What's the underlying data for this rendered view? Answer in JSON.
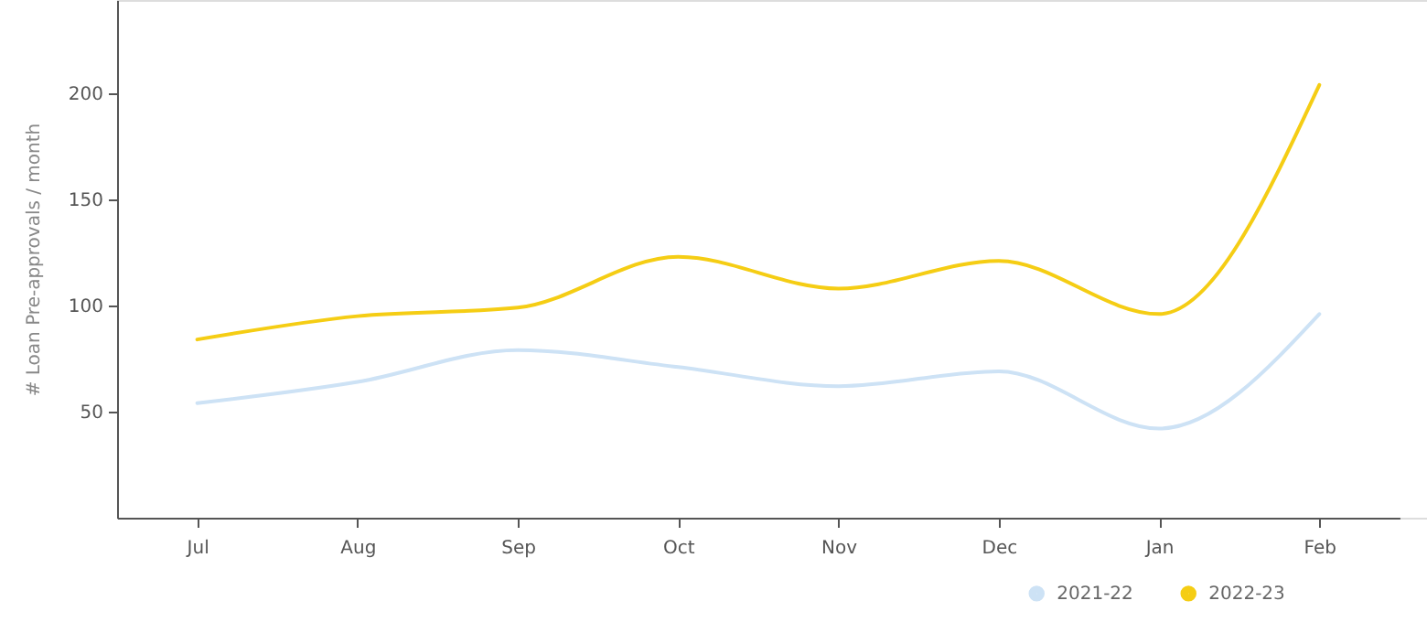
{
  "chart_data": {
    "type": "line",
    "ylabel": "# Loan Pre-approvals / month",
    "categories": [
      "Jul",
      "Aug",
      "Sep",
      "Oct",
      "Nov",
      "Dec",
      "Jan",
      "Feb"
    ],
    "series": [
      {
        "name": "2021-22",
        "color": "#cde2f5",
        "values": [
          54,
          64,
          79,
          71,
          62,
          69,
          42,
          96
        ]
      },
      {
        "name": "2022-23",
        "color": "#f5cd14",
        "values": [
          84,
          95,
          99,
          123,
          108,
          121,
          96,
          204
        ]
      }
    ],
    "ylim": [
      0,
      244
    ],
    "yticks": [
      50,
      100,
      150,
      200
    ],
    "grid": false,
    "legend": "bottom right",
    "marker": "none",
    "line_style": "solid"
  }
}
